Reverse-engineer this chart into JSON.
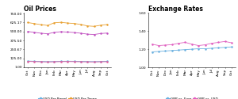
{
  "oil_title": "Oil Prices",
  "exchange_title": "Exchange Rates",
  "x_labels_oil": [
    "Oct",
    "Nov",
    "Dec",
    "Jan",
    "Feb",
    "Mar",
    "Apr",
    "May",
    "Jun",
    "Jul",
    "Aug",
    "Sep",
    "Oct"
  ],
  "x_labels_fx": [
    "Oct",
    "Nov",
    "Dec",
    "Jan",
    "Feb",
    "Mar",
    "Apr",
    "May",
    "Jun",
    "Jul",
    "Aug",
    "Sep",
    "Oct"
  ],
  "usd_per_barrel": [
    87,
    84,
    81,
    79,
    80,
    83,
    85,
    84,
    82,
    80,
    79,
    81,
    83
  ],
  "gbp_per_barrel": [
    82,
    79,
    77,
    75,
    77,
    79,
    80,
    79,
    77,
    76,
    75,
    77,
    78
  ],
  "usd_per_tonne": [
    625,
    610,
    595,
    585,
    622,
    628,
    618,
    612,
    598,
    578,
    572,
    588,
    598
  ],
  "gbp_per_tonne": [
    500,
    488,
    476,
    468,
    488,
    497,
    492,
    486,
    476,
    463,
    458,
    472,
    478
  ],
  "gbp_vs_euro": [
    1.17,
    1.175,
    1.18,
    1.185,
    1.19,
    1.195,
    1.2,
    1.205,
    1.205,
    1.21,
    1.215,
    1.22,
    1.225
  ],
  "gbp_vs_usd": [
    1.255,
    1.24,
    1.245,
    1.25,
    1.265,
    1.275,
    1.255,
    1.24,
    1.248,
    1.265,
    1.275,
    1.285,
    1.27
  ],
  "color_usd_barrel": "#6ab0e0",
  "color_gbp_barrel": "#e060a0",
  "color_usd_tonne": "#e8a030",
  "color_gbp_tonne": "#c050c0",
  "color_gbp_euro": "#6ab0e0",
  "color_gbp_usd": "#e060c0",
  "oil_ylim": [
    0,
    760
  ],
  "oil_yticks": [
    1.0,
    125.0,
    250.67,
    375.5,
    500.0,
    625.17,
    750.0
  ],
  "oil_ytick_labels": [
    "1.00",
    "125.00",
    "250.67",
    "375.50",
    "500.00",
    "625.17",
    "750.00"
  ],
  "fx_ylim": [
    1.0,
    1.6
  ],
  "fx_yticks": [
    1.0,
    1.2,
    1.4,
    1.6
  ],
  "fx_ytick_labels": [
    "1.00",
    "1.20",
    "1.40",
    "1.60"
  ],
  "title_fontsize": 5.5,
  "tick_fontsize": 3.2,
  "legend_fontsize": 3.0
}
